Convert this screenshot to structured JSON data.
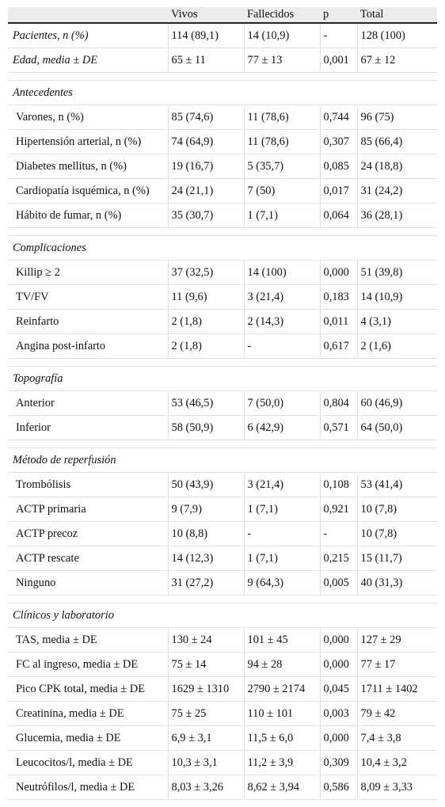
{
  "headers": [
    "",
    "Vivos",
    "Fallecidos",
    "p",
    "Total"
  ],
  "rows": [
    {
      "type": "data",
      "italic": true,
      "cells": [
        "Pacientes, n (%)",
        "114 (89,1)",
        "14 (10,9)",
        "-",
        "128 (100)"
      ]
    },
    {
      "type": "data",
      "italic": true,
      "cells": [
        "Edad, media ± DE",
        "65 ± 11",
        "77 ± 13",
        "0,001",
        "67 ± 12"
      ]
    },
    {
      "type": "sep"
    },
    {
      "type": "section",
      "label": "Antecedentes"
    },
    {
      "type": "data",
      "cells": [
        "Varones, n (%)",
        "85 (74,6)",
        "11 (78,6)",
        "0,744",
        "96 (75)"
      ]
    },
    {
      "type": "data",
      "cells": [
        "Hipertensión arterial, n (%)",
        "74 (64,9)",
        "11 (78,6)",
        "0,307",
        "85 (66,4)"
      ]
    },
    {
      "type": "data",
      "cells": [
        "Diabetes mellitus, n (%)",
        "19 (16,7)",
        "5 (35,7)",
        "0,085",
        "24 (18,8)"
      ]
    },
    {
      "type": "data",
      "cells": [
        "Cardiopatía isquémica, n (%)",
        "24 (21,1)",
        "7 (50)",
        "0,017",
        "31 (24,2)"
      ]
    },
    {
      "type": "data",
      "cells": [
        "Hábito de fumar, n (%)",
        "35 (30,7)",
        "1 (7,1)",
        "0,064",
        "36 (28,1)"
      ]
    },
    {
      "type": "sep"
    },
    {
      "type": "section",
      "label": "Complicaciones"
    },
    {
      "type": "data",
      "cells": [
        "Killip ≥ 2",
        "37 (32,5)",
        "14 (100)",
        "0,000",
        "51 (39,8)"
      ]
    },
    {
      "type": "data",
      "cells": [
        "TV/FV",
        "11 (9,6)",
        "3 (21,4)",
        "0,183",
        "14 (10,9)"
      ]
    },
    {
      "type": "data",
      "cells": [
        "Reinfarto",
        "2 (1,8)",
        "2 (14,3)",
        "0,011",
        "4 (3,1)"
      ]
    },
    {
      "type": "data",
      "cells": [
        "Angina post-infarto",
        "2 (1,8)",
        "-",
        "0,617",
        "2 (1,6)"
      ]
    },
    {
      "type": "sep"
    },
    {
      "type": "section",
      "label": "Topografía"
    },
    {
      "type": "data",
      "cells": [
        "Anterior",
        "53 (46,5)",
        "7 (50,0)",
        "0,804",
        "60 (46,9)"
      ]
    },
    {
      "type": "data",
      "cells": [
        "Inferior",
        "58 (50,9)",
        "6 (42,9)",
        "0,571",
        "64 (50,0)"
      ]
    },
    {
      "type": "sep"
    },
    {
      "type": "section",
      "label": "Método de reperfusión"
    },
    {
      "type": "data",
      "cells": [
        "Trombólisis",
        "50 (43,9)",
        "3 (21,4)",
        "0,108",
        "53 (41,4)"
      ]
    },
    {
      "type": "data",
      "cells": [
        "ACTP primaria",
        "9 (7,9)",
        "1 (7,1)",
        "0,921",
        "10 (7,8)"
      ]
    },
    {
      "type": "data",
      "cells": [
        "ACTP precoz",
        "10 (8,8)",
        "-",
        "-",
        "10 (7,8)"
      ]
    },
    {
      "type": "data",
      "cells": [
        "ACTP rescate",
        "14 (12,3)",
        "1 (7,1)",
        "0,215",
        "15 (11,7)"
      ]
    },
    {
      "type": "data",
      "cells": [
        "Ninguno",
        "31 (27,2)",
        "9 (64,3)",
        "0,005",
        "40 (31,3)"
      ]
    },
    {
      "type": "sep"
    },
    {
      "type": "section",
      "label": "Clínicos y laboratorio"
    },
    {
      "type": "data",
      "cells": [
        "TAS, media ± DE",
        "130 ± 24",
        "101 ± 45",
        "0,000",
        "127 ± 29"
      ]
    },
    {
      "type": "data",
      "cells": [
        "FC al ingreso, media ± DE",
        "75 ± 14",
        "94 ± 28",
        "0,000",
        "77 ± 17"
      ]
    },
    {
      "type": "data",
      "cells": [
        "Pico CPK total, media ± DE",
        "1629 ± 1310",
        "2790 ± 2174",
        "0,045",
        "1711 ± 1402"
      ]
    },
    {
      "type": "data",
      "cells": [
        "Creatinina, media ± DE",
        "75 ± 25",
        "110 ± 101",
        "0,003",
        "79 ± 42"
      ]
    },
    {
      "type": "data",
      "cells": [
        "Glucemia, media ± DE",
        "6,9 ± 3,1",
        "11,5 ± 6,0",
        "0,000",
        "7,4 ± 3,8"
      ]
    },
    {
      "type": "data",
      "cells": [
        "Leucocitos/l, media ± DE",
        "10,3 ± 3,1",
        "11,2 ± 3,9",
        "0,309",
        "10,4 ± 3,2"
      ]
    },
    {
      "type": "data",
      "cells": [
        "Neutrófilos/l, media ± DE",
        "8,03 ± 3,26",
        "8,62 ± 3,94",
        "0,586",
        "8,09 ± 3,33"
      ]
    }
  ]
}
